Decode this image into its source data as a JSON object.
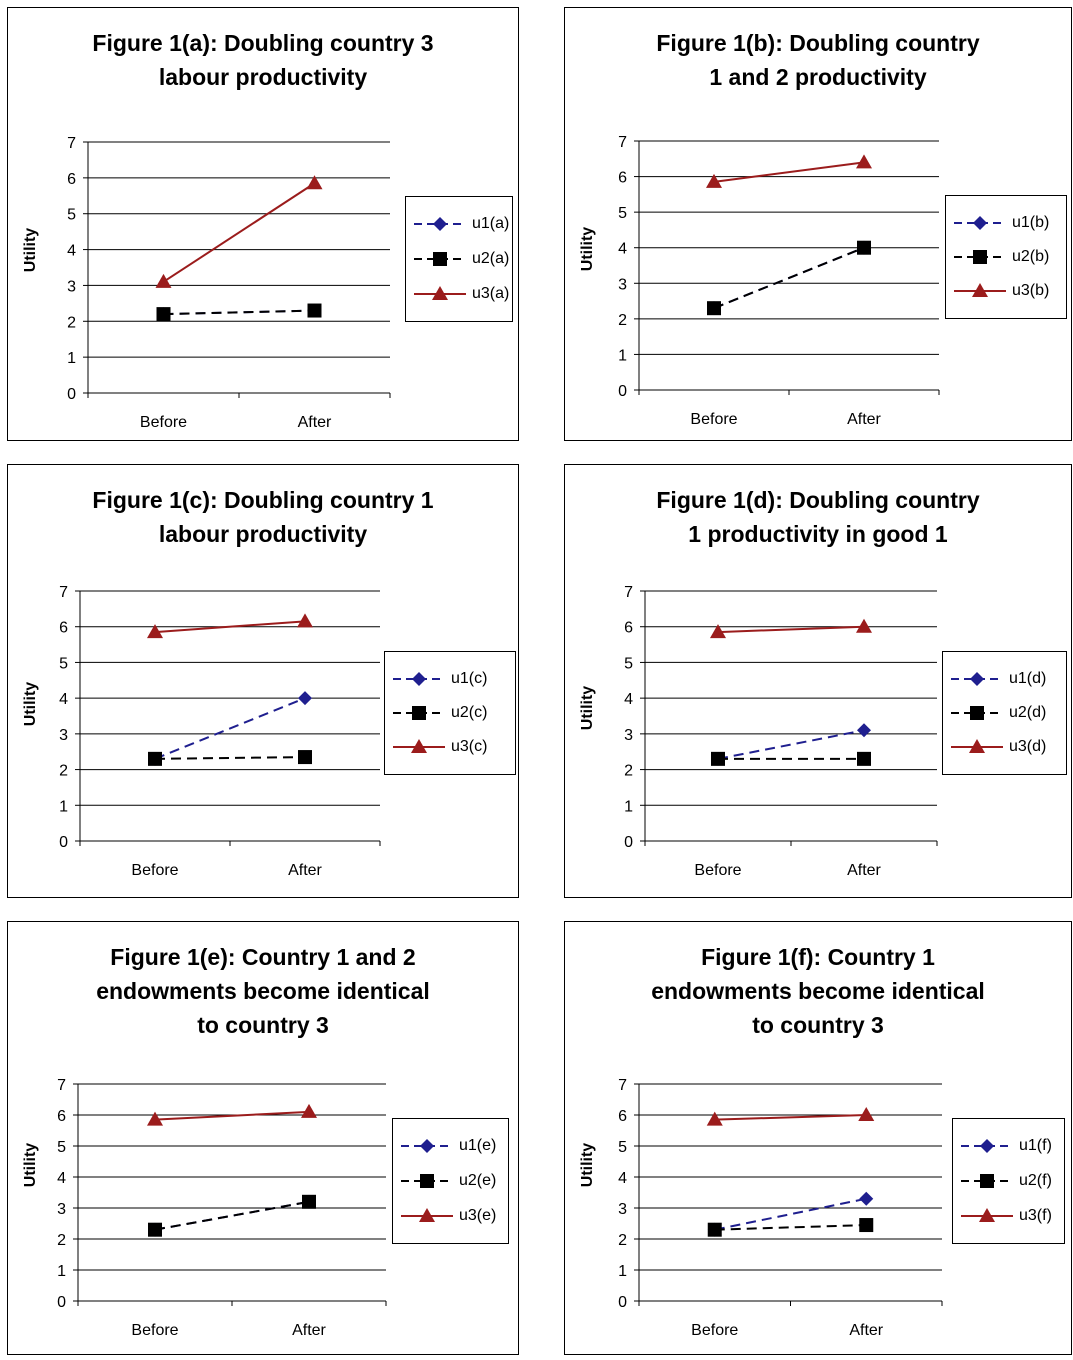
{
  "colors": {
    "u1": "#1f1f8f",
    "u2": "#000000",
    "u3": "#9b1c1c",
    "grid": "#000000"
  },
  "chart_data": [
    {
      "type": "line",
      "title": "Figure 1(a): Doubling country 3\nlabour productivity",
      "ylabel": "Utility",
      "categories": [
        "Before",
        "After"
      ],
      "yticks": [
        "0",
        "1",
        "2",
        "3",
        "4",
        "5",
        "6",
        "7"
      ],
      "ylim": [
        0,
        7
      ],
      "grid": true,
      "legend_position": "right",
      "series": [
        {
          "name": "u1(a)",
          "values": [
            2.2,
            2.3
          ],
          "style": "dashed",
          "marker": "diamond",
          "color_key": "u1"
        },
        {
          "name": "u2(a)",
          "values": [
            2.2,
            2.3
          ],
          "style": "dashed",
          "marker": "square",
          "color_key": "u2"
        },
        {
          "name": "u3(a)",
          "values": [
            3.1,
            5.85
          ],
          "style": "solid",
          "marker": "triangle",
          "color_key": "u3"
        }
      ]
    },
    {
      "type": "line",
      "title": "Figure 1(b): Doubling country\n1 and 2 productivity",
      "ylabel": "Utility",
      "categories": [
        "Before",
        "After"
      ],
      "yticks": [
        "0",
        "1",
        "2",
        "3",
        "4",
        "5",
        "6",
        "7"
      ],
      "ylim": [
        0,
        7
      ],
      "grid": true,
      "legend_position": "right",
      "series": [
        {
          "name": "u1(b)",
          "values": [
            2.3,
            4.0
          ],
          "style": "dashed",
          "marker": "diamond",
          "color_key": "u1"
        },
        {
          "name": "u2(b)",
          "values": [
            2.3,
            4.0
          ],
          "style": "dashed",
          "marker": "square",
          "color_key": "u2"
        },
        {
          "name": "u3(b)",
          "values": [
            5.85,
            6.4
          ],
          "style": "solid",
          "marker": "triangle",
          "color_key": "u3"
        }
      ]
    },
    {
      "type": "line",
      "title": "Figure 1(c): Doubling country 1\nlabour productivity",
      "ylabel": "Utility",
      "categories": [
        "Before",
        "After"
      ],
      "yticks": [
        "0",
        "1",
        "2",
        "3",
        "4",
        "5",
        "6",
        "7"
      ],
      "ylim": [
        0,
        7
      ],
      "grid": true,
      "legend_position": "right",
      "series": [
        {
          "name": "u1(c)",
          "values": [
            2.3,
            4.0
          ],
          "style": "dashed",
          "marker": "diamond",
          "color_key": "u1"
        },
        {
          "name": "u2(c)",
          "values": [
            2.3,
            2.35
          ],
          "style": "dashed",
          "marker": "square",
          "color_key": "u2"
        },
        {
          "name": "u3(c)",
          "values": [
            5.85,
            6.15
          ],
          "style": "solid",
          "marker": "triangle",
          "color_key": "u3"
        }
      ]
    },
    {
      "type": "line",
      "title": "Figure 1(d): Doubling country\n1 productivity in good 1",
      "ylabel": "Utility",
      "categories": [
        "Before",
        "After"
      ],
      "yticks": [
        "0",
        "1",
        "2",
        "3",
        "4",
        "5",
        "6",
        "7"
      ],
      "ylim": [
        0,
        7
      ],
      "grid": true,
      "legend_position": "right",
      "series": [
        {
          "name": "u1(d)",
          "values": [
            2.3,
            3.1
          ],
          "style": "dashed",
          "marker": "diamond",
          "color_key": "u1"
        },
        {
          "name": "u2(d)",
          "values": [
            2.3,
            2.3
          ],
          "style": "dashed",
          "marker": "square",
          "color_key": "u2"
        },
        {
          "name": "u3(d)",
          "values": [
            5.85,
            6.0
          ],
          "style": "solid",
          "marker": "triangle",
          "color_key": "u3"
        }
      ]
    },
    {
      "type": "line",
      "title": "Figure 1(e): Country 1 and 2\nendowments become identical\nto country 3",
      "ylabel": "Utility",
      "categories": [
        "Before",
        "After"
      ],
      "yticks": [
        "0",
        "1",
        "2",
        "3",
        "4",
        "5",
        "6",
        "7"
      ],
      "ylim": [
        0,
        7
      ],
      "grid": true,
      "legend_position": "right",
      "series": [
        {
          "name": "u1(e)",
          "values": [
            2.3,
            3.2
          ],
          "style": "dashed",
          "marker": "diamond",
          "color_key": "u1"
        },
        {
          "name": "u2(e)",
          "values": [
            2.3,
            3.2
          ],
          "style": "dashed",
          "marker": "square",
          "color_key": "u2"
        },
        {
          "name": "u3(e)",
          "values": [
            5.85,
            6.1
          ],
          "style": "solid",
          "marker": "triangle",
          "color_key": "u3"
        }
      ]
    },
    {
      "type": "line",
      "title": "Figure 1(f): Country 1\nendowments become identical\nto country 3",
      "ylabel": "Utility",
      "categories": [
        "Before",
        "After"
      ],
      "yticks": [
        "0",
        "1",
        "2",
        "3",
        "4",
        "5",
        "6",
        "7"
      ],
      "ylim": [
        0,
        7
      ],
      "grid": true,
      "legend_position": "right",
      "series": [
        {
          "name": "u1(f)",
          "values": [
            2.3,
            3.3
          ],
          "style": "dashed",
          "marker": "diamond",
          "color_key": "u1"
        },
        {
          "name": "u2(f)",
          "values": [
            2.3,
            2.45
          ],
          "style": "dashed",
          "marker": "square",
          "color_key": "u2"
        },
        {
          "name": "u3(f)",
          "values": [
            5.85,
            6.0
          ],
          "style": "solid",
          "marker": "triangle",
          "color_key": "u3"
        }
      ]
    }
  ]
}
